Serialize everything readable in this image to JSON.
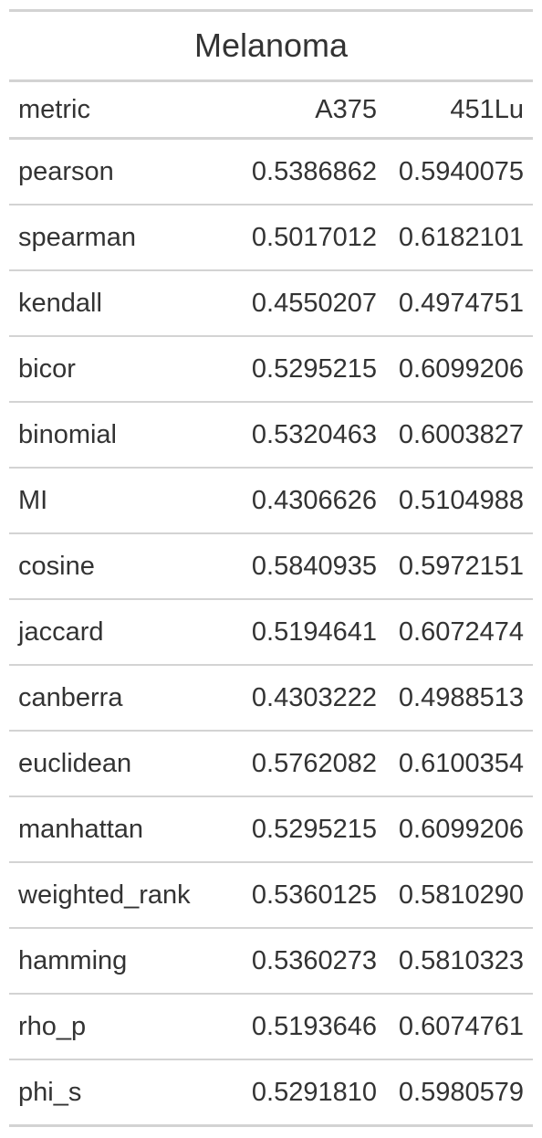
{
  "table": {
    "title": "Melanoma",
    "columns": [
      "metric",
      "A375",
      "451Lu"
    ],
    "rows": [
      {
        "metric": "pearson",
        "a375": "0.5386862",
        "lu451": "0.5940075"
      },
      {
        "metric": "spearman",
        "a375": "0.5017012",
        "lu451": "0.6182101"
      },
      {
        "metric": "kendall",
        "a375": "0.4550207",
        "lu451": "0.4974751"
      },
      {
        "metric": "bicor",
        "a375": "0.5295215",
        "lu451": "0.6099206"
      },
      {
        "metric": "binomial",
        "a375": "0.5320463",
        "lu451": "0.6003827"
      },
      {
        "metric": "MI",
        "a375": "0.4306626",
        "lu451": "0.5104988"
      },
      {
        "metric": "cosine",
        "a375": "0.5840935",
        "lu451": "0.5972151"
      },
      {
        "metric": "jaccard",
        "a375": "0.5194641",
        "lu451": "0.6072474"
      },
      {
        "metric": "canberra",
        "a375": "0.4303222",
        "lu451": "0.4988513"
      },
      {
        "metric": "euclidean",
        "a375": "0.5762082",
        "lu451": "0.6100354"
      },
      {
        "metric": "manhattan",
        "a375": "0.5295215",
        "lu451": "0.6099206"
      },
      {
        "metric": "weighted_rank",
        "a375": "0.5360125",
        "lu451": "0.5810290"
      },
      {
        "metric": "hamming",
        "a375": "0.5360273",
        "lu451": "0.5810323"
      },
      {
        "metric": "rho_p",
        "a375": "0.5193646",
        "lu451": "0.6074761"
      },
      {
        "metric": "phi_s",
        "a375": "0.5291810",
        "lu451": "0.5980579"
      }
    ]
  },
  "colors": {
    "text": "#333333",
    "rule": "#d3d3d3",
    "background": "#ffffff"
  }
}
